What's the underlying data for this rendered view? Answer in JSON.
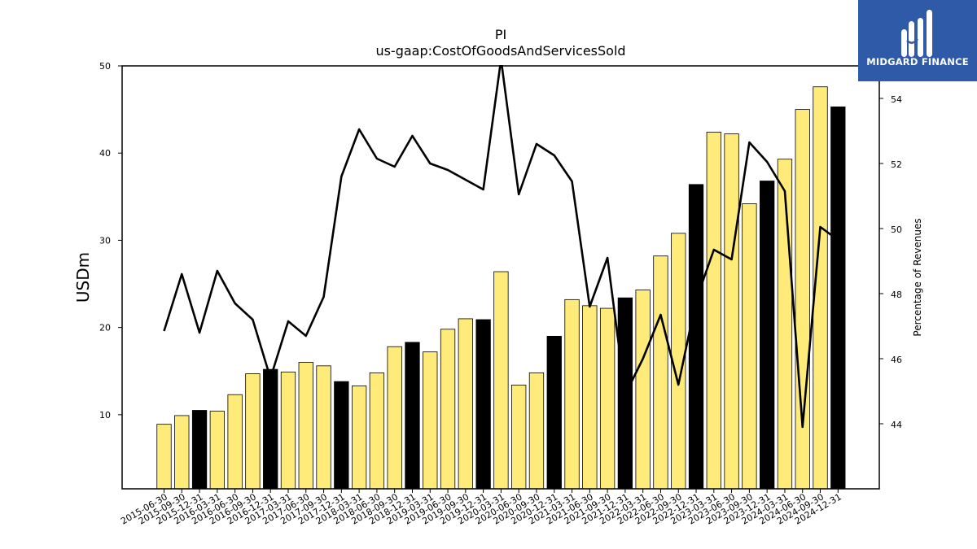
{
  "chart_data": {
    "type": "bar",
    "title": "PI",
    "subtitle": "us-gaap:CostOfGoodsAndServicesSold",
    "ylabel": "USDm",
    "y2label": "Percentage of Revenues",
    "ylim": [
      1.5,
      50
    ],
    "y2lim": [
      42,
      55
    ],
    "yticks": [
      10,
      20,
      30,
      40,
      50
    ],
    "y2ticks": [
      44,
      46,
      48,
      50,
      52,
      54
    ],
    "categories": [
      "2015-06-30",
      "2015-09-30",
      "2015-12-31",
      "2016-03-31",
      "2016-06-30",
      "2016-09-30",
      "2016-12-31",
      "2017-03-31",
      "2017-06-30",
      "2017-09-30",
      "2017-12-31",
      "2018-03-31",
      "2018-06-30",
      "2018-09-30",
      "2018-12-31",
      "2019-03-31",
      "2019-06-30",
      "2019-09-30",
      "2019-12-31",
      "2020-03-31",
      "2020-06-30",
      "2020-09-30",
      "2020-12-31",
      "2021-03-31",
      "2021-06-30",
      "2021-09-30",
      "2021-12-31",
      "2022-03-31",
      "2022-06-30",
      "2022-09-30",
      "2022-12-31",
      "2023-03-31",
      "2023-06-30",
      "2023-09-30",
      "2023-12-31",
      "2024-03-31",
      "2024-06-30",
      "2024-09-30",
      "2024-12-31"
    ],
    "series": [
      {
        "type": "bar",
        "values": [
          8.9,
          9.9,
          10.5,
          10.4,
          12.3,
          14.7,
          15.2,
          14.9,
          16.0,
          15.6,
          13.8,
          13.3,
          14.8,
          17.8,
          18.3,
          17.2,
          19.8,
          21.0,
          20.9,
          26.4,
          13.4,
          14.8,
          19.0,
          23.2,
          22.5,
          22.2,
          23.4,
          24.3,
          28.2,
          30.8,
          36.4,
          42.4,
          42.2,
          34.2,
          36.8,
          39.3,
          45.0,
          47.6,
          45.3
        ],
        "highlight": [
          false,
          false,
          true,
          false,
          false,
          false,
          true,
          false,
          false,
          false,
          true,
          false,
          false,
          false,
          true,
          false,
          false,
          false,
          true,
          false,
          false,
          false,
          true,
          false,
          false,
          false,
          true,
          false,
          false,
          false,
          true,
          false,
          false,
          false,
          true,
          false,
          false,
          false,
          true
        ],
        "fill": "#ffeb7a",
        "highlight_fill": "#000000"
      },
      {
        "type": "line",
        "axis": "right",
        "values": [
          46.85,
          48.6,
          46.8,
          48.7,
          47.7,
          47.2,
          45.4,
          47.15,
          46.7,
          47.9,
          51.6,
          53.05,
          52.15,
          51.9,
          52.85,
          52.0,
          51.8,
          51.5,
          51.2,
          55.2,
          51.05,
          52.6,
          52.25,
          51.45,
          47.6,
          49.1,
          44.9,
          46.0,
          47.35,
          45.2,
          47.8,
          49.35,
          49.05,
          52.65,
          52.05,
          51.15,
          43.9,
          50.05,
          49.65
        ],
        "color": "#000000"
      }
    ],
    "grid": false,
    "legend": "none"
  },
  "logo": {
    "text": "MIDGARD FINANCE",
    "background": "#2f5aa8"
  }
}
